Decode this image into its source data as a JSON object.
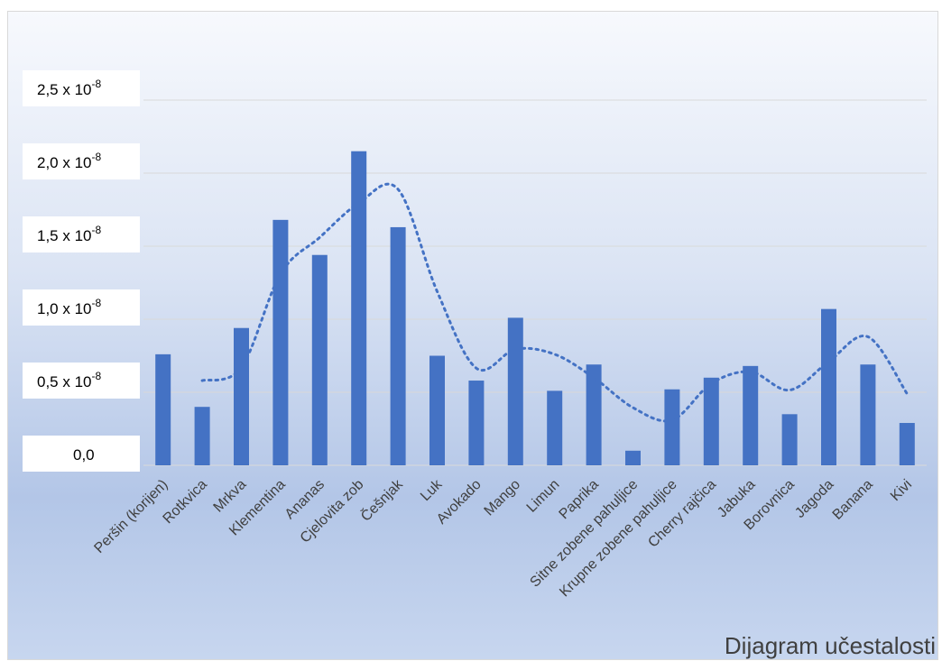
{
  "chart_data": {
    "type": "bar",
    "title": "Dijagram učestalosti",
    "categories": [
      "Peršin (korijen)",
      "Rotkvica",
      "Mrkva",
      "Klementina",
      "Ananas",
      "Cjelovita zob",
      "Češnjak",
      "Luk",
      "Avokado",
      "Mango",
      "Limun",
      "Paprika",
      "Sitne zobene pahuljice",
      "Krupne zobene pahuljice",
      "Cherry rajčica",
      "Jabuka",
      "Borovnica",
      "Jagoda",
      "Banana",
      "Kivi"
    ],
    "values": [
      7.6e-09,
      4e-09,
      9.4e-09,
      1.68e-08,
      1.44e-08,
      2.15e-08,
      1.63e-08,
      7.5e-09,
      5.8e-09,
      1.01e-08,
      5.1e-09,
      6.9e-09,
      1e-09,
      5.2e-09,
      6e-09,
      6.8e-09,
      3.5e-09,
      1.07e-08,
      6.9e-09,
      2.9e-09
    ],
    "trendline": {
      "type": "moving-average",
      "period": 2,
      "style": "dotted",
      "values": [
        null,
        5.8e-09,
        6.7e-09,
        1.31e-08,
        1.56e-08,
        1.795e-08,
        1.89e-08,
        1.19e-08,
        6.65e-09,
        7.95e-09,
        7.6e-09,
        6e-09,
        3.95e-09,
        3.1e-09,
        5.6e-09,
        6.4e-09,
        5.15e-09,
        7.1e-09,
        8.8e-09,
        4.9e-09
      ]
    },
    "ylim": [
      0,
      2.5e-08
    ],
    "yticks": [
      0,
      5e-09,
      1e-08,
      1.5e-08,
      2e-08,
      2.5e-08
    ],
    "ytick_labels": [
      {
        "mantissa": "0,0",
        "exp": ""
      },
      {
        "mantissa": "0,5 x 10",
        "exp": "-8"
      },
      {
        "mantissa": "1,0 x 10",
        "exp": "-8"
      },
      {
        "mantissa": "1,5 x 10",
        "exp": "-8"
      },
      {
        "mantissa": "2,0 x 10",
        "exp": "-8"
      },
      {
        "mantissa": "2,5 x 10",
        "exp": "-8"
      }
    ],
    "grid": true,
    "legend": "none",
    "colors": {
      "bar": "#4472c4",
      "trend": "#4472c4",
      "grid": "#d9d9d9",
      "label_box": "#ffffff"
    }
  }
}
